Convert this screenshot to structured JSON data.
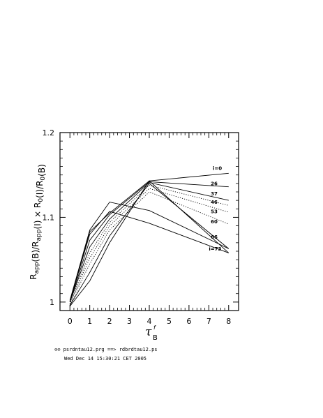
{
  "chart_data": {
    "type": "line",
    "ylabel_parts": [
      {
        "text": "R",
        "sub": "app"
      },
      {
        "text": "(B)/R",
        "sub": "app"
      },
      {
        "text": "(I) × R",
        "sub": "0"
      },
      {
        "text": "(I)/R",
        "sub": "0"
      },
      {
        "text": "(B)",
        "sub": ""
      }
    ],
    "xlabel": {
      "main": "τ",
      "sub": "B",
      "sup": "f"
    },
    "xlim": [
      -0.5,
      8.5
    ],
    "ylim": [
      0.99,
      1.2
    ],
    "x_ticks": [
      0,
      1,
      2,
      3,
      4,
      5,
      6,
      7,
      8
    ],
    "y_ticks": [
      {
        "value": 1,
        "label": "1"
      },
      {
        "value": 1.1,
        "label": "1.1"
      },
      {
        "value": 1.2,
        "label": "1.2"
      }
    ],
    "series": [
      {
        "name": "i=0",
        "style": "solid",
        "points": [
          [
            0,
            1.0
          ],
          [
            1,
            1.083
          ],
          [
            2,
            1.105
          ],
          [
            4,
            1.143
          ],
          [
            8,
            1.152
          ]
        ]
      },
      {
        "name": "26",
        "style": "solid",
        "points": [
          [
            0,
            1.0
          ],
          [
            1,
            1.073
          ],
          [
            2,
            1.103
          ],
          [
            4,
            1.142
          ],
          [
            8,
            1.136
          ]
        ]
      },
      {
        "name": "37",
        "style": "solid",
        "points": [
          [
            0,
            1.0
          ],
          [
            1,
            1.065
          ],
          [
            2,
            1.098
          ],
          [
            4,
            1.141
          ],
          [
            8,
            1.12
          ]
        ]
      },
      {
        "name": "46",
        "style": "dotted",
        "points": [
          [
            0,
            0.998
          ],
          [
            1,
            1.058
          ],
          [
            2,
            1.094
          ],
          [
            4,
            1.138
          ],
          [
            8,
            1.114
          ]
        ]
      },
      {
        "name": "53",
        "style": "dotted",
        "points": [
          [
            0,
            0.998
          ],
          [
            1,
            1.052
          ],
          [
            2,
            1.09
          ],
          [
            4,
            1.134
          ],
          [
            8,
            1.106
          ]
        ]
      },
      {
        "name": "60",
        "style": "dotted",
        "points": [
          [
            0,
            0.997
          ],
          [
            1,
            1.045
          ],
          [
            2,
            1.085
          ],
          [
            4,
            1.13
          ],
          [
            8,
            1.092
          ]
        ]
      },
      {
        "name": "66",
        "style": "solid",
        "points": [
          [
            0,
            0.996
          ],
          [
            1,
            1.035
          ],
          [
            2,
            1.078
          ],
          [
            4,
            1.14
          ],
          [
            8,
            1.063
          ]
        ]
      },
      {
        "name": "i=73",
        "style": "solid",
        "points": [
          [
            0,
            0.995
          ],
          [
            1,
            1.025
          ],
          [
            2,
            1.07
          ],
          [
            4,
            1.143
          ],
          [
            8,
            1.058
          ]
        ]
      },
      {
        "name": "",
        "style": "solid",
        "points": [
          [
            0,
            1.002
          ],
          [
            1,
            1.085
          ],
          [
            2,
            1.118
          ],
          [
            4,
            1.108
          ],
          [
            8,
            1.063
          ]
        ]
      },
      {
        "name": "",
        "style": "solid",
        "points": [
          [
            0,
            1.001
          ],
          [
            1,
            1.08
          ],
          [
            2,
            1.107
          ],
          [
            4,
            1.093
          ],
          [
            8,
            1.058
          ]
        ]
      }
    ],
    "labels": [
      {
        "text": "i=0",
        "x": 7.2,
        "y": 1.156
      },
      {
        "text": "26",
        "x": 7.1,
        "y": 1.138
      },
      {
        "text": "37",
        "x": 7.1,
        "y": 1.126
      },
      {
        "text": "46",
        "x": 7.1,
        "y": 1.116
      },
      {
        "text": "53",
        "x": 7.1,
        "y": 1.105
      },
      {
        "text": "60",
        "x": 7.1,
        "y": 1.093
      },
      {
        "text": "66",
        "x": 7.1,
        "y": 1.075
      },
      {
        "text": "i=73",
        "x": 7.0,
        "y": 1.061
      }
    ]
  },
  "footer": {
    "line1": "⊙⊙ psrdntau12.prg ==> rdbrdtau12.ps",
    "line2": "Wed Dec 14 15:30:21 CET 2005"
  }
}
